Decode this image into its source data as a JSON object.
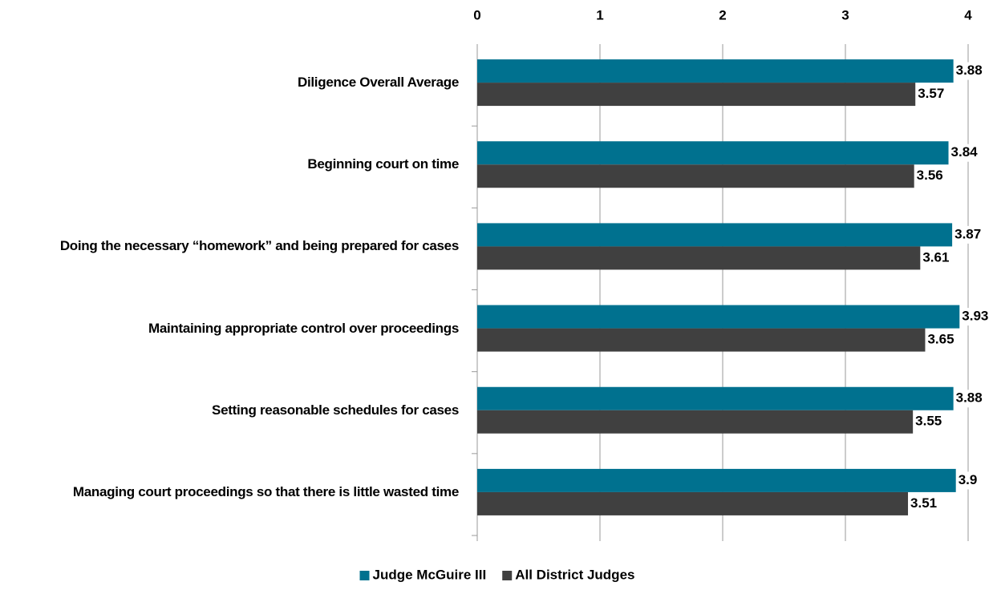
{
  "chart_data": {
    "type": "bar",
    "orientation": "horizontal",
    "categories": [
      "Diligence Overall Average",
      "Beginning court on time",
      "Doing the necessary “homework” and being prepared for cases",
      "Maintaining appropriate control over proceedings",
      "Setting reasonable schedules for cases",
      "Managing court proceedings so that there is little wasted time"
    ],
    "series": [
      {
        "name": "Judge McGuire III",
        "color": "#00718f",
        "values": [
          3.88,
          3.84,
          3.87,
          3.93,
          3.88,
          3.9
        ]
      },
      {
        "name": "All District Judges",
        "color": "#404040",
        "values": [
          3.57,
          3.56,
          3.61,
          3.65,
          3.55,
          3.51
        ]
      }
    ],
    "xlim": [
      0,
      4
    ],
    "xticks": [
      0,
      1,
      2,
      3,
      4
    ],
    "grid": true,
    "legend": "bottom"
  }
}
